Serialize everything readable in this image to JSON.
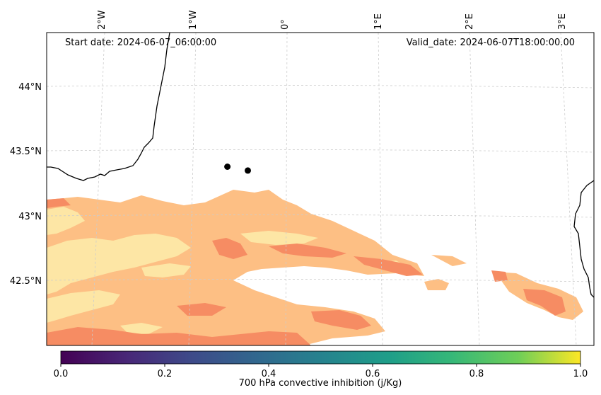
{
  "map": {
    "start_date": "Start date: 2024-06-07_06:00:00",
    "valid_date": "Valid_date: 2024-06-07T18:00:00.00",
    "lon_labels": [
      "2°W",
      "1°W",
      "0°",
      "1°E",
      "2°E",
      "3°E"
    ],
    "lat_labels": [
      "44°N",
      "43.5°N",
      "43°N",
      "42.5°N"
    ],
    "markers": [
      {
        "name": "station-1",
        "lon": -0.62,
        "lat": 43.38
      },
      {
        "name": "station-2",
        "lon": -0.4,
        "lat": 43.35
      }
    ],
    "field_colors": {
      "light": "#fde6a5",
      "mid": "#fdbf84",
      "strong": "#f68c63"
    }
  },
  "colorbar": {
    "label": "700 hPa convective inhibition (j/Kg)",
    "ticks": [
      "0.0",
      "0.2",
      "0.4",
      "0.6",
      "0.8",
      "1.0"
    ],
    "range": [
      0.0,
      1.0
    ],
    "colormap": "viridis"
  }
}
